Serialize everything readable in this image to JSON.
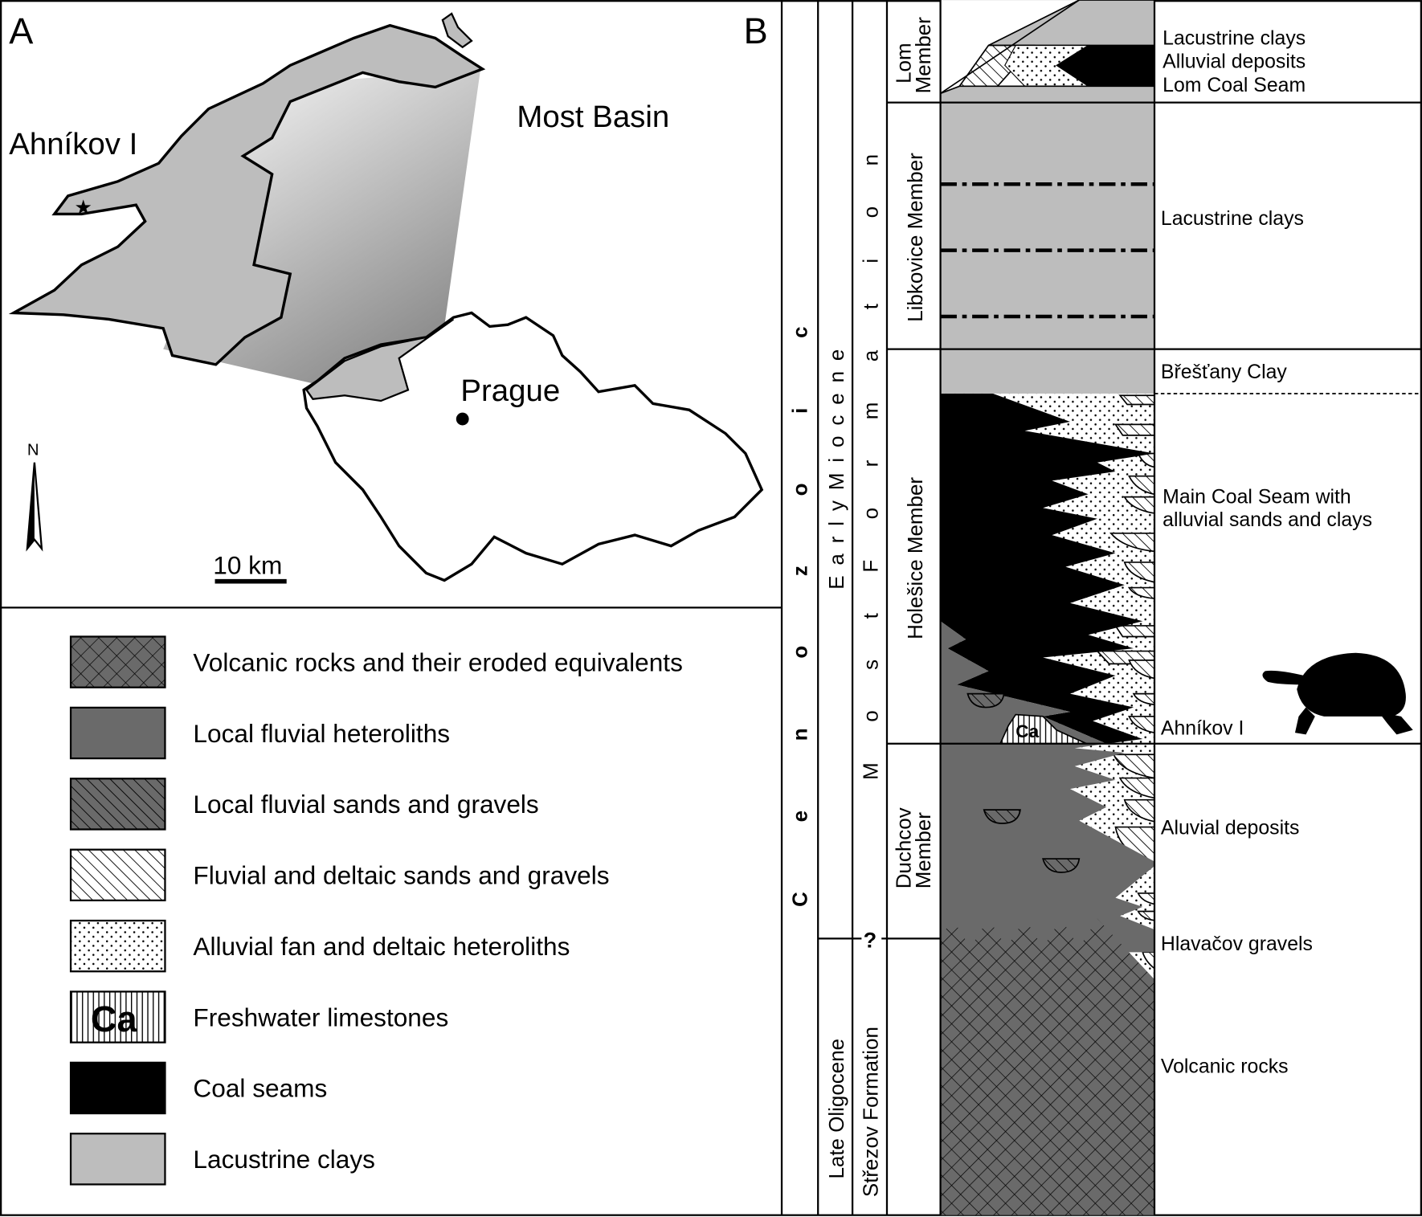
{
  "panels": {
    "a": "A",
    "b": "B"
  },
  "map": {
    "site_label": "Ahníkov I",
    "basin_label": "Most Basin",
    "city_label": "Prague",
    "north_label": "N",
    "scale_label": "10 km"
  },
  "legend": [
    {
      "pattern": "volcanic",
      "label": "Volcanic rocks and their eroded equivalents"
    },
    {
      "pattern": "heterolith",
      "label": "Local fluvial heteroliths"
    },
    {
      "pattern": "localsand",
      "label": "Local fluvial sands and gravels"
    },
    {
      "pattern": "fluvsand",
      "label": "Fluvial and deltaic sands and gravels"
    },
    {
      "pattern": "dots",
      "label": "Alluvial fan and deltaic heteroliths"
    },
    {
      "pattern": "limestone",
      "label": "Freshwater limestones",
      "symbol": "Ca"
    },
    {
      "pattern": "coal",
      "label": "Coal seams"
    },
    {
      "pattern": "clay",
      "label": "Lacustrine clays"
    }
  ],
  "column": {
    "era": "C e n o z o i c",
    "epochs": [
      "E a r l y   M i o c e n e",
      "Late Oligocene"
    ],
    "formations": [
      "M o s t   F o r m a t i o n",
      "Střezov Formation"
    ],
    "boundary_query": "?",
    "members": {
      "lom": [
        "Lom",
        "Member"
      ],
      "libkovice": "Libkovice Member",
      "holesice": "Holešice Member",
      "duchcov": [
        "Duchcov",
        "Member"
      ]
    },
    "ca_symbol": "Ca",
    "units": [
      "Lacustrine clays",
      "Alluvial deposits",
      "Lom Coal Seam",
      "Lacustrine clays",
      "Břešťany Clay",
      "Main Coal Seam with",
      "alluvial sands and clays",
      "Ahníkov I",
      "Aluvial deposits",
      "Hlavačov gravels",
      "Volcanic rocks"
    ]
  },
  "colors": {
    "clay": "#bdbdbd",
    "heterolith": "#6a6a6a",
    "coal": "#000000"
  }
}
